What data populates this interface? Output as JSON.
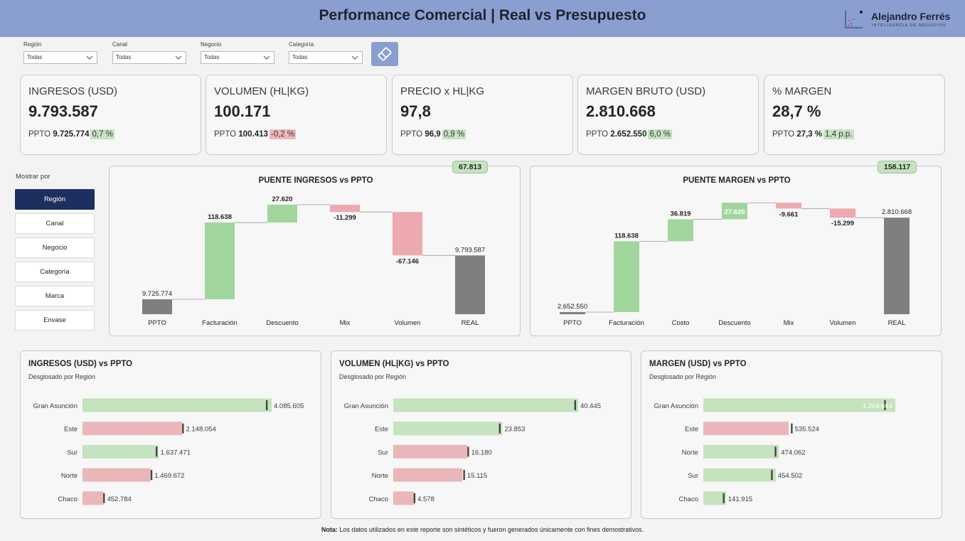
{
  "header": {
    "title": "Performance Comercial | Real vs Presupuesto"
  },
  "brand": {
    "name": "Alejandro Ferrés",
    "tagline": "INTELIGENCIA DE NEGOCIOS"
  },
  "filters": [
    {
      "label": "Región",
      "value": "Todas"
    },
    {
      "label": "Canal",
      "value": "Todas"
    },
    {
      "label": "Negocio",
      "value": "Todas"
    },
    {
      "label": "Categoría",
      "value": "Todas"
    }
  ],
  "clear_filters_icon": "eraser-icon",
  "kpis": [
    {
      "title": "INGRESOS (USD)",
      "value": "9.793.587",
      "ppto_label": "PPTO",
      "ppto": "9.725.774",
      "delta": "0,7 %",
      "delta_sign": "pos"
    },
    {
      "title": "VOLUMEN (HL|KG)",
      "value": "100.171",
      "ppto_label": "PPTO",
      "ppto": "100.413",
      "delta": "-0,2 %",
      "delta_sign": "neg"
    },
    {
      "title": "PRECIO x HL|KG",
      "value": "97,8",
      "ppto_label": "PPTO",
      "ppto": "96,9",
      "delta": "0,9 %",
      "delta_sign": "pos"
    },
    {
      "title": "MARGEN BRUTO (USD)",
      "value": "2.810.668",
      "ppto_label": "PPTO",
      "ppto": "2.652.550",
      "delta": "6,0 %",
      "delta_sign": "pos"
    },
    {
      "title": "% MARGEN",
      "value": "28,7 %",
      "ppto_label": "PPTO",
      "ppto": "27,3 %",
      "delta": "1,4 p.p.",
      "delta_sign": "pos"
    }
  ],
  "mostrar_por": {
    "label": "Mostrar por",
    "options": [
      "Región",
      "Canal",
      "Negocio",
      "Categoría",
      "Marca",
      "Envase"
    ],
    "selected": "Región"
  },
  "colors": {
    "pos": "#a0d69c",
    "neg": "#eca9ae",
    "total": "#7f7f7f",
    "bar_pos": "#c5e3be",
    "bar_neg": "#e9b7b8",
    "header": "#8a9fcf",
    "selected": "#1d2f5e"
  },
  "chart_data": [
    {
      "type": "bar",
      "subtype": "waterfall",
      "title": "PUENTE INGRESOS vs PPTO",
      "badge": "67.813",
      "categories": [
        "PPTO",
        "Facturación",
        "Descuento",
        "Mix",
        "Volumen",
        "REAL"
      ],
      "kinds": [
        "total",
        "delta",
        "delta",
        "delta",
        "delta",
        "total"
      ],
      "values": [
        9725774,
        118638,
        27620,
        -11299,
        -67146,
        9793587
      ],
      "labels": [
        "9.725.774",
        "118.638",
        "27.620",
        "-11.299",
        "-67.146",
        "9.793.587"
      ],
      "note": "totals shown on a broken axis"
    },
    {
      "type": "bar",
      "subtype": "waterfall",
      "title": "PUENTE MARGEN vs PPTO",
      "badge": "158.117",
      "categories": [
        "PPTO",
        "Facturación",
        "Costo",
        "Descuento",
        "Mix",
        "Volumen",
        "REAL"
      ],
      "kinds": [
        "total",
        "delta",
        "delta",
        "delta",
        "delta",
        "delta",
        "total"
      ],
      "values": [
        2652550,
        118638,
        36819,
        27620,
        -9661,
        -15299,
        2810668
      ],
      "labels": [
        "2.652.550",
        "118.638",
        "36.819",
        "27.620",
        "-9.661",
        "-15.299",
        "2.810.668"
      ],
      "note": "totals shown on a broken axis"
    },
    {
      "type": "bar",
      "orientation": "horizontal",
      "title": "INGRESOS (USD) vs PPTO",
      "subtitle": "Desglosado por Región",
      "categories": [
        "Gran Asunción",
        "Este",
        "Sur",
        "Norte",
        "Chaco"
      ],
      "values": [
        4085605,
        2148054,
        1637471,
        1469672,
        452784
      ],
      "labels": [
        "4.085.605",
        "2.148.054",
        "1.637.471",
        "1.469.672",
        "452.784"
      ],
      "status": [
        "pos",
        "neg",
        "pos",
        "neg",
        "neg"
      ],
      "targets": [
        3980000,
        2170000,
        1600000,
        1490000,
        465000
      ]
    },
    {
      "type": "bar",
      "orientation": "horizontal",
      "title": "VOLUMEN (HL|KG) vs PPTO",
      "subtitle": "Desglosado por Región",
      "categories": [
        "Gran Asunción",
        "Este",
        "Sur",
        "Norte",
        "Chaco"
      ],
      "values": [
        40445,
        23853,
        16180,
        15115,
        4578
      ],
      "labels": [
        "40.445",
        "23.853",
        "16.180",
        "15.115",
        "4.578"
      ],
      "status": [
        "pos",
        "pos",
        "neg",
        "neg",
        "neg"
      ],
      "targets": [
        39800,
        23300,
        16400,
        15500,
        4650
      ]
    },
    {
      "type": "bar",
      "orientation": "horizontal",
      "title": "MARGEN (USD) vs PPTO",
      "subtitle": "Desglosado por Región",
      "categories": [
        "Gran Asunción",
        "Este",
        "Norte",
        "Sur",
        "Chaco"
      ],
      "values": [
        1204664,
        535524,
        474062,
        454502,
        141915
      ],
      "labels": [
        "1.204.664",
        "535.524",
        "474.062",
        "454.502",
        "141.915"
      ],
      "status": [
        "pos",
        "neg",
        "pos",
        "pos",
        "pos"
      ],
      "targets": [
        1140000,
        555000,
        453000,
        430000,
        128000
      ]
    }
  ],
  "note": {
    "label": "Nota:",
    "text": " Los datos utilizados en este reporte son sintéticos y fueron generados únicamente con fines demostrativos."
  }
}
